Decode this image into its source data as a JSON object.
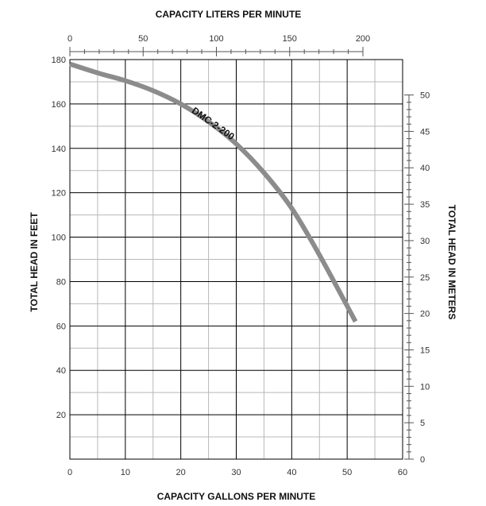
{
  "chart_data": {
    "type": "line",
    "axes": {
      "x_bottom": {
        "label": "CAPACITY GALLONS PER MINUTE",
        "range": [
          0,
          60
        ],
        "ticks": [
          0,
          10,
          20,
          30,
          40,
          50,
          60
        ],
        "unit": "GPM"
      },
      "x_top": {
        "label": "CAPACITY LITERS PER MINUTE",
        "range": [
          0,
          227.1
        ],
        "ticks": [
          0,
          50,
          100,
          150,
          200
        ],
        "unit": "LPM"
      },
      "y_left": {
        "label": "TOTAL HEAD IN FEET",
        "range": [
          0,
          180
        ],
        "ticks": [
          20,
          40,
          60,
          80,
          100,
          120,
          140,
          160,
          180
        ],
        "unit": "ft"
      },
      "y_right": {
        "label": "TOTAL HEAD IN METERS",
        "range": [
          0,
          54.86
        ],
        "ticks": [
          0,
          5,
          10,
          15,
          20,
          25,
          30,
          35,
          40,
          45,
          50
        ],
        "unit": "m"
      }
    },
    "grid": {
      "major": true,
      "minor": true,
      "x_minor_step": 5,
      "y_minor_step": 10
    },
    "series": [
      {
        "name": "DMC-2-200",
        "color": "#8c8c8c",
        "x": [
          0,
          5,
          10,
          15,
          20,
          25,
          30,
          35,
          40,
          45,
          51.5
        ],
        "y": [
          178,
          174,
          170.5,
          166,
          160,
          152,
          142,
          129,
          113,
          92,
          62
        ]
      }
    ]
  }
}
